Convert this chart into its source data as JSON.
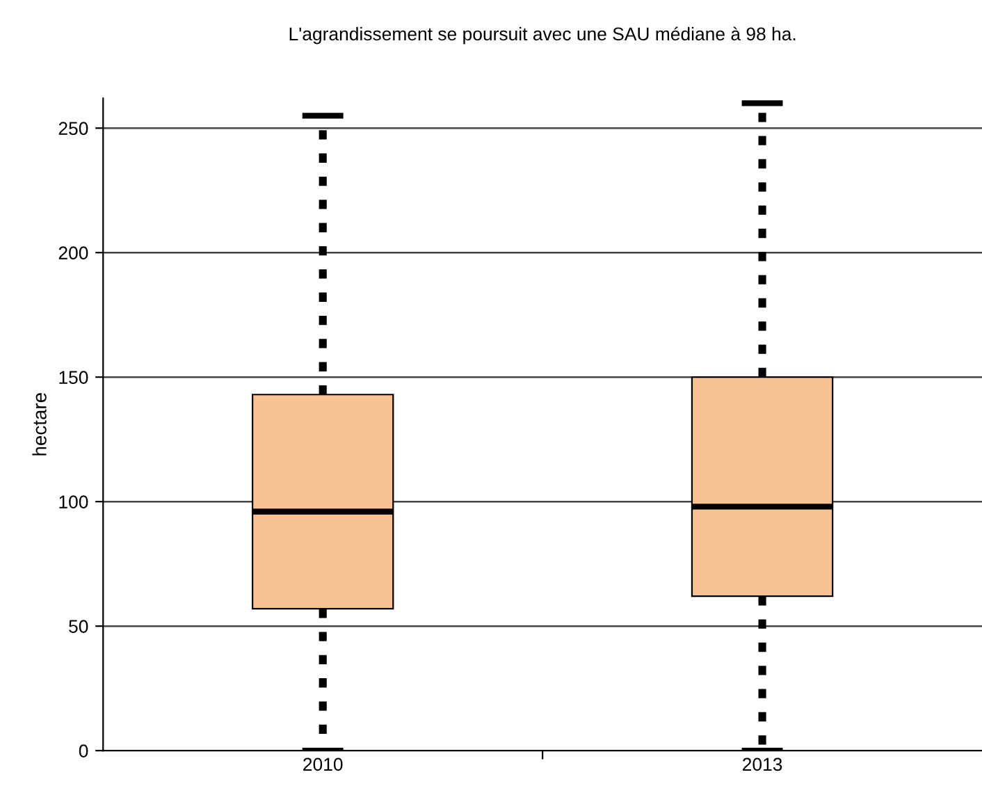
{
  "chart_data": {
    "type": "box",
    "title": "L'agrandissement se poursuit avec une SAU médiane à 98 ha.",
    "ylabel": "hectare",
    "categories": [
      "2010",
      "2013"
    ],
    "boxes": [
      {
        "low": 0,
        "q1": 57,
        "median": 96,
        "q3": 143,
        "high": 255
      },
      {
        "low": 0,
        "q1": 62,
        "median": 98,
        "q3": 150,
        "high": 260
      }
    ],
    "color": "#f8c292",
    "ylim": [
      0,
      262
    ],
    "yticks": [
      0,
      50,
      100,
      150,
      200,
      250
    ],
    "grid": "y",
    "line_style": "dashed",
    "legend": false
  }
}
